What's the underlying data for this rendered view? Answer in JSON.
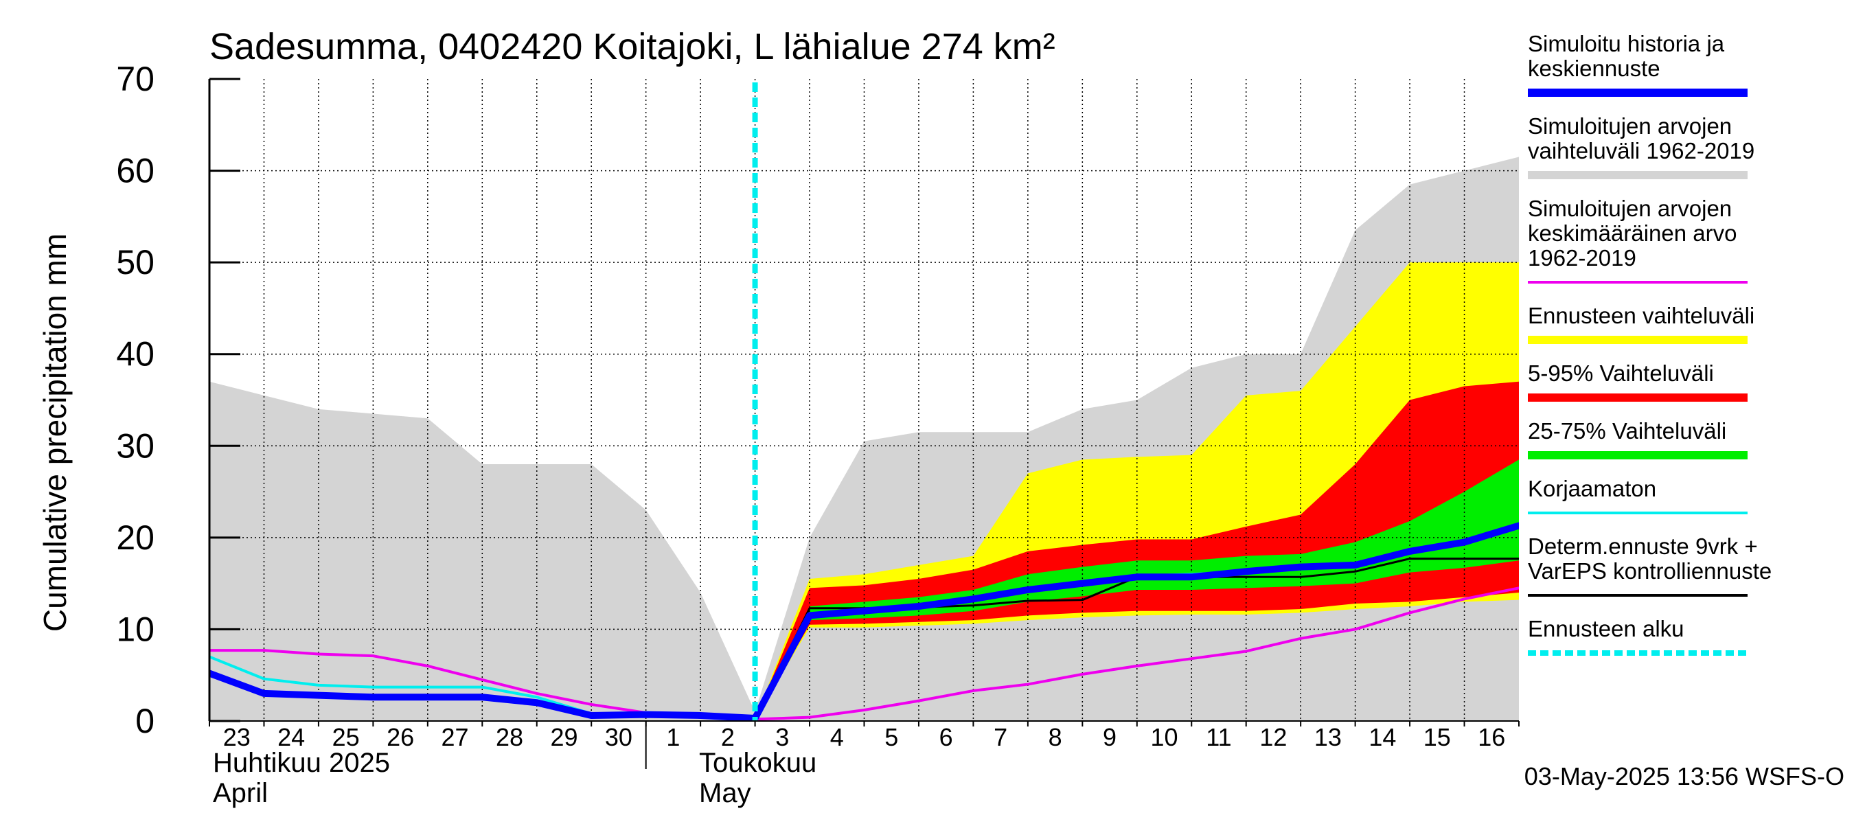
{
  "chart_data": {
    "type": "area",
    "title": "Sadesumma, 0402420 Koitajoki, L lähialue 274 km²",
    "ylabel": "Cumulative precipitation   mm",
    "ylim": [
      0,
      70
    ],
    "yticks": [
      0,
      10,
      20,
      30,
      40,
      50,
      60,
      70
    ],
    "grid": true,
    "legend_position": "right",
    "x_day_index_range": [
      0,
      24
    ],
    "x_tick_labels": [
      "23",
      "24",
      "25",
      "26",
      "27",
      "28",
      "29",
      "30",
      "1",
      "2",
      "3",
      "4",
      "5",
      "6",
      "7",
      "8",
      "9",
      "10",
      "11",
      "12",
      "13",
      "14",
      "15",
      "16"
    ],
    "month_labels": [
      {
        "fi": "Huhtikuu  2025",
        "en": "April"
      },
      {
        "fi": "Toukokuu",
        "en": "May"
      }
    ],
    "forecast_start_index": 10,
    "footer": "03-May-2025 13:56 WSFS-O",
    "colors": {
      "history_range": "#d4d4d4",
      "ensemble_range": "#ffff00",
      "range_5_95": "#ff0000",
      "range_25_75": "#00ee00",
      "simulated": "#0000ff",
      "mean": "#ee00ee",
      "uncorrected": "#00eeee",
      "deterministic": "#000000",
      "forecast_start": "#00eeee"
    },
    "legend": [
      {
        "label_lines": [
          "Simuloitu historia ja",
          "keskiennuste"
        ],
        "color": "#0000ff",
        "style": "thick"
      },
      {
        "label_lines": [
          "Simuloitujen arvojen",
          "vaihteluväli 1962-2019"
        ],
        "color": "#d4d4d4",
        "style": "thick"
      },
      {
        "label_lines": [
          "Simuloitujen arvojen",
          "keskimääräinen arvo",
          "   1962-2019"
        ],
        "color": "#ee00ee",
        "style": "line"
      },
      {
        "label_lines": [
          "Ennusteen vaihteluväli"
        ],
        "color": "#ffff00",
        "style": "thick"
      },
      {
        "label_lines": [
          "5-95% Vaihteluväli"
        ],
        "color": "#ff0000",
        "style": "thick"
      },
      {
        "label_lines": [
          "25-75% Vaihteluväli"
        ],
        "color": "#00ee00",
        "style": "thick"
      },
      {
        "label_lines": [
          "Korjaamaton"
        ],
        "color": "#00eeee",
        "style": "line"
      },
      {
        "label_lines": [
          "Determ.ennuste 9vrk +",
          "VarEPS kontrolliennuste"
        ],
        "color": "#000000",
        "style": "line"
      },
      {
        "label_lines": [
          "Ennusteen alku"
        ],
        "color": "#00eeee",
        "style": "dashed"
      }
    ],
    "series": [
      {
        "name": "Simuloitujen arvojen vaihteluväli 1962-2019",
        "kind": "band",
        "x": [
          0,
          1,
          2,
          3,
          4,
          5,
          6,
          7,
          8,
          9,
          10,
          11,
          12,
          13,
          14,
          15,
          16,
          17,
          18,
          19,
          20,
          21,
          22,
          23,
          24
        ],
        "upper": [
          37,
          35.5,
          34,
          33.5,
          33,
          28,
          28,
          28,
          23,
          14,
          1,
          20,
          30.5,
          31.5,
          31.5,
          31.5,
          34,
          35,
          38.5,
          40,
          40,
          53.5,
          58.5,
          60,
          61.5
        ],
        "lower": [
          0,
          0,
          0,
          0,
          0,
          0,
          0,
          0,
          0,
          0,
          0,
          0,
          0,
          0,
          0,
          0,
          0,
          0,
          0,
          0,
          0,
          0,
          0,
          0,
          0
        ]
      },
      {
        "name": "Ennusteen vaihteluväli",
        "kind": "band",
        "x": [
          10,
          11,
          12,
          13,
          14,
          15,
          16,
          17,
          18,
          19,
          20,
          21,
          22,
          23,
          24
        ],
        "upper": [
          0.2,
          15.5,
          16,
          17,
          18,
          27,
          28.5,
          28.8,
          29,
          35.5,
          36,
          43,
          50,
          50,
          50
        ],
        "lower": [
          0.2,
          10.2,
          10.2,
          10.4,
          10.6,
          11,
          11.3,
          11.5,
          11.6,
          11.6,
          11.8,
          12.2,
          12.5,
          13,
          13.2
        ]
      },
      {
        "name": "5-95% Vaihteluväli",
        "kind": "band",
        "x": [
          10,
          11,
          12,
          13,
          14,
          15,
          16,
          17,
          18,
          19,
          20,
          21,
          22,
          23,
          24
        ],
        "upper": [
          0.2,
          14.5,
          14.8,
          15.5,
          16.5,
          18.5,
          19.2,
          19.8,
          19.8,
          21.2,
          22.5,
          28,
          35,
          36.5,
          37
        ],
        "lower": [
          0.2,
          10.5,
          10.6,
          10.8,
          11,
          11.5,
          11.8,
          12,
          12,
          12,
          12.2,
          12.8,
          13,
          13.5,
          14
        ]
      },
      {
        "name": "25-75% Vaihteluväli",
        "kind": "band",
        "x": [
          10,
          11,
          12,
          13,
          14,
          15,
          16,
          17,
          18,
          19,
          20,
          21,
          22,
          23,
          24
        ],
        "upper": [
          0.2,
          12.5,
          13,
          13.5,
          14.3,
          16,
          16.8,
          17.5,
          17.5,
          18,
          18.2,
          19.5,
          21.8,
          25,
          28.5
        ],
        "lower": [
          0.2,
          11,
          11.2,
          11.5,
          12,
          13,
          13.6,
          14.3,
          14.3,
          14.5,
          14.7,
          15,
          16.2,
          16.7,
          17.5
        ]
      },
      {
        "name": "Simuloitujen arvojen keskimääräinen arvo 1962-2019",
        "kind": "line",
        "x": [
          0,
          1,
          2,
          3,
          4,
          5,
          6,
          7,
          8,
          9,
          10,
          11,
          12,
          13,
          14,
          15,
          16,
          17,
          18,
          19,
          20,
          21,
          22,
          23,
          24
        ],
        "values": [
          7.7,
          7.7,
          7.3,
          7.1,
          6,
          4.5,
          3,
          1.8,
          0.9,
          0.5,
          0.2,
          0.4,
          1.2,
          2.2,
          3.3,
          4,
          5.1,
          6,
          6.8,
          7.6,
          9,
          10,
          11.8,
          13.3,
          14.5
        ]
      },
      {
        "name": "Korjaamaton",
        "kind": "line",
        "x": [
          0,
          1,
          2,
          3,
          4,
          5,
          6,
          7,
          8,
          9,
          10,
          11,
          12,
          13,
          14,
          15,
          16,
          17,
          18,
          19,
          20,
          21,
          22,
          23,
          24
        ],
        "values": [
          7,
          4.6,
          3.9,
          3.7,
          3.7,
          3.7,
          2.6,
          0.8,
          0.8,
          0.8,
          0.4,
          11.5,
          12,
          12.5,
          13.5,
          14.3,
          15,
          15.8,
          16,
          16.3,
          16.8,
          17.2,
          18.5,
          19.5,
          21.3
        ]
      },
      {
        "name": "Determ.ennuste 9vrk + VarEPS kontrolliennuste",
        "kind": "line",
        "x": [
          10,
          11,
          12,
          13,
          14,
          15,
          16,
          17,
          18,
          19,
          20,
          21,
          22,
          23,
          24
        ],
        "values": [
          0.2,
          12.3,
          12.3,
          12.4,
          12.6,
          13.1,
          13.2,
          15.7,
          15.7,
          15.7,
          15.7,
          16.3,
          17.7,
          17.7,
          17.7
        ]
      },
      {
        "name": "Simuloitu historia ja keskiennuste",
        "kind": "line",
        "x": [
          0,
          1,
          2,
          3,
          4,
          5,
          6,
          7,
          8,
          9,
          10,
          11,
          12,
          13,
          14,
          15,
          16,
          17,
          18,
          19,
          20,
          21,
          22,
          23,
          24
        ],
        "values": [
          5.2,
          3,
          2.8,
          2.6,
          2.6,
          2.6,
          2,
          0.6,
          0.7,
          0.6,
          0.3,
          11.5,
          12,
          12.5,
          13.3,
          14.3,
          15,
          15.7,
          15.7,
          16.3,
          16.8,
          17,
          18.5,
          19.5,
          21.3
        ]
      }
    ]
  }
}
